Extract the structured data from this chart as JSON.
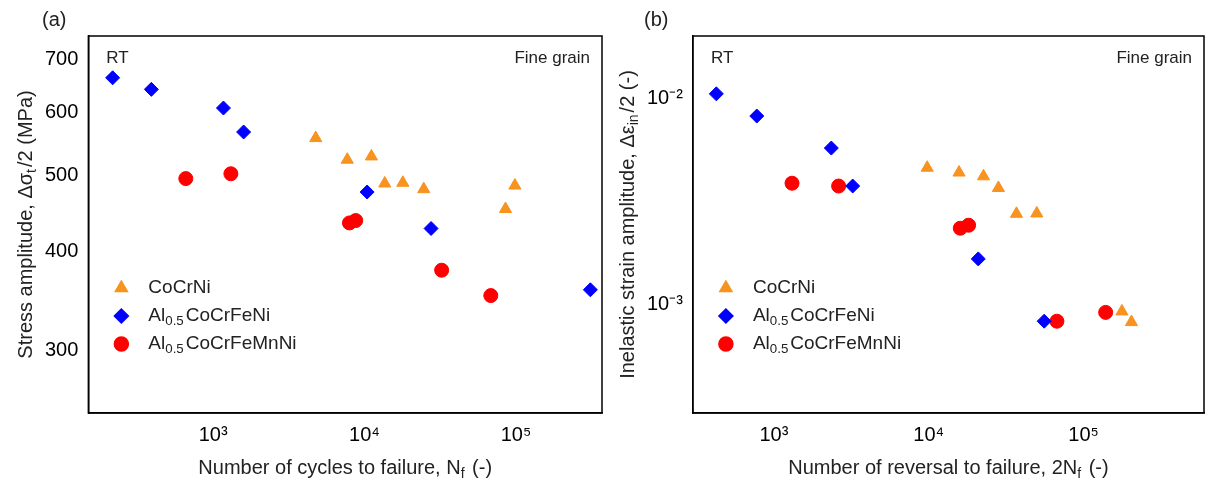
{
  "chart_data": [
    {
      "type": "scatter",
      "title": "(a)",
      "xlabel": "Number of cycles to failure, N$_{f}$ (-)",
      "ylabel": "Stress amplitude, Δσ$_{t}$/2 (MPa)",
      "log": "xy",
      "xlim": [
        150,
        370000
      ],
      "ylim": [
        250,
        750
      ],
      "xticks": [
        {
          "value": 1000,
          "label": "10³"
        },
        {
          "value": 10000,
          "label": "10⁴"
        },
        {
          "value": 100000,
          "label": "10⁵"
        }
      ],
      "yticks": [
        300,
        400,
        500,
        600,
        700
      ],
      "legend": "bottom left",
      "annotations": [
        "RT",
        "Fine grain"
      ],
      "series": [
        {
          "name": "CoCrNi",
          "color": "#f7931e",
          "marker": "triangle",
          "x": [
            4760,
            7690,
            11100,
            13600,
            17900,
            24600,
            85300,
            98400
          ],
          "values": [
            557,
            523,
            528,
            488,
            489,
            480,
            453,
            485
          ]
        },
        {
          "name": "Al$_{0.5}$CoCrFeNi",
          "color": "#0000ff",
          "marker": "diamond",
          "x": [
            217,
            391,
            1170,
            1590,
            10400,
            27500,
            310000
          ],
          "values": [
            664,
            642,
            608,
            567,
            476,
            428,
            358
          ]
        },
        {
          "name": "Al$_{0.5}$CoCrFeMnNi",
          "color": "#ff0000",
          "marker": "circle",
          "x": [
            660,
            1310,
            7950,
            8740,
            32300,
            68200
          ],
          "values": [
            495,
            502,
            435,
            438,
            379,
            352
          ]
        }
      ]
    },
    {
      "type": "scatter",
      "title": "(b)",
      "xlabel": "Number of reversal to failure, 2N$_{f}$ (-)",
      "ylabel": "Inelastic strain amplitude, Δε$_{in}$/2 (-)",
      "log": "xy",
      "xlim": [
        300,
        600000
      ],
      "ylim": [
        0.0003,
        0.02
      ],
      "xticks": [
        {
          "value": 1000,
          "label": "10³"
        },
        {
          "value": 10000,
          "label": "10⁴"
        },
        {
          "value": 100000,
          "label": "10⁵"
        }
      ],
      "yticks": [
        {
          "value": 0.001,
          "label": "10⁻³"
        },
        {
          "value": 0.01,
          "label": "10⁻²"
        }
      ],
      "legend": "bottom left",
      "annotations": [
        "RT",
        "Fine grain"
      ],
      "series": [
        {
          "name": "CoCrNi",
          "color": "#f7931e",
          "marker": "triangle",
          "x": [
            9780,
            15700,
            22600,
            28200,
            36900,
            49900,
            177000,
            204000
          ],
          "values": [
            0.00461,
            0.00437,
            0.00419,
            0.00368,
            0.00276,
            0.00277,
            0.00093,
            0.000826
          ]
        },
        {
          "name": "Al$_{0.5}$CoCrFeNi",
          "color": "#0000ff",
          "marker": "diamond",
          "x": [
            425,
            776,
            2350,
            3230,
            20900,
            55700
          ],
          "values": [
            0.0105,
            0.0082,
            0.00574,
            0.00376,
            0.00167,
            0.000834
          ]
        },
        {
          "name": "Al$_{0.5}$CoCrFeMnNi",
          "color": "#ff0000",
          "marker": "circle",
          "x": [
            1310,
            2620,
            16000,
            18100,
            67300,
            139000
          ],
          "values": [
            0.00388,
            0.00376,
            0.00235,
            0.00243,
            0.000834,
            0.00092
          ]
        }
      ]
    }
  ]
}
